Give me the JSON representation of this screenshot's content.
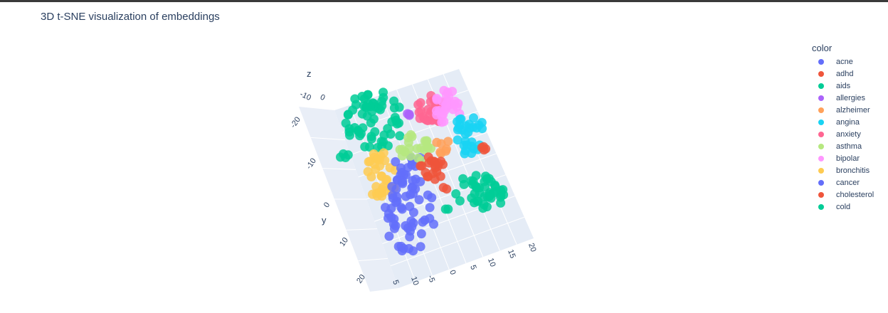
{
  "chart_data": {
    "type": "scatter",
    "title": "3D t-SNE visualization of embeddings",
    "legend_title": "color",
    "legend_placement": "right",
    "axes": {
      "x": {
        "ticks": [
          "0",
          "5",
          "10",
          "15",
          "20"
        ]
      },
      "y": {
        "label": "y",
        "ticks": [
          "-20",
          "-10",
          "0",
          "10",
          "20"
        ]
      },
      "z": {
        "label": "z",
        "ticks": [
          "-10",
          "0"
        ]
      },
      "extra_ticks": [
        "5",
        "10",
        "-5"
      ]
    },
    "series": [
      {
        "name": "acne",
        "color": "#636efa"
      },
      {
        "name": "adhd",
        "color": "#EF553B"
      },
      {
        "name": "aids",
        "color": "#00cc96"
      },
      {
        "name": "allergies",
        "color": "#ab63fa"
      },
      {
        "name": "alzheimer",
        "color": "#FFA15A"
      },
      {
        "name": "angina",
        "color": "#19d3f3"
      },
      {
        "name": "anxiety",
        "color": "#FF6692"
      },
      {
        "name": "asthma",
        "color": "#B6E880"
      },
      {
        "name": "bipolar",
        "color": "#FF97FF"
      },
      {
        "name": "bronchitis",
        "color": "#FECB52"
      },
      {
        "name": "cancer",
        "color": "#636efa"
      },
      {
        "name": "cholesterol",
        "color": "#EF553B"
      },
      {
        "name": "cold",
        "color": "#00cc96"
      }
    ],
    "clusters": [
      {
        "series": 2,
        "cx": 527,
        "cy": 170,
        "rx": 42,
        "ry": 42,
        "n": 60
      },
      {
        "series": 9,
        "cx": 537,
        "cy": 245,
        "rx": 22,
        "ry": 36,
        "n": 34
      },
      {
        "series": 10,
        "cx": 575,
        "cy": 300,
        "rx": 36,
        "ry": 56,
        "n": 60
      },
      {
        "series": 12,
        "cx": 675,
        "cy": 270,
        "rx": 36,
        "ry": 26,
        "n": 42
      },
      {
        "series": 0,
        "cx": 575,
        "cy": 230,
        "rx": 20,
        "ry": 20,
        "n": 10
      },
      {
        "series": 6,
        "cx": 605,
        "cy": 155,
        "rx": 20,
        "ry": 22,
        "n": 26
      },
      {
        "series": 8,
        "cx": 630,
        "cy": 150,
        "rx": 20,
        "ry": 25,
        "n": 28
      },
      {
        "series": 5,
        "cx": 658,
        "cy": 190,
        "rx": 25,
        "ry": 28,
        "n": 30
      },
      {
        "series": 7,
        "cx": 584,
        "cy": 210,
        "rx": 22,
        "ry": 22,
        "n": 22
      },
      {
        "series": 4,
        "cx": 620,
        "cy": 205,
        "rx": 12,
        "ry": 12,
        "n": 7
      },
      {
        "series": 1,
        "cx": 608,
        "cy": 238,
        "rx": 18,
        "ry": 20,
        "n": 20
      },
      {
        "series": 11,
        "cx": 680,
        "cy": 210,
        "rx": 6,
        "ry": 5,
        "n": 4
      },
      {
        "series": 3,
        "cx": 572,
        "cy": 163,
        "rx": 4,
        "ry": 5,
        "n": 3
      },
      {
        "series": 2,
        "cx": 485,
        "cy": 222,
        "rx": 7,
        "ry": 7,
        "n": 4
      },
      {
        "series": 12,
        "cx": 627,
        "cy": 294,
        "rx": 4,
        "ry": 3,
        "n": 2
      },
      {
        "series": 11,
        "cx": 625,
        "cy": 264,
        "rx": 4,
        "ry": 3,
        "n": 2
      }
    ]
  }
}
